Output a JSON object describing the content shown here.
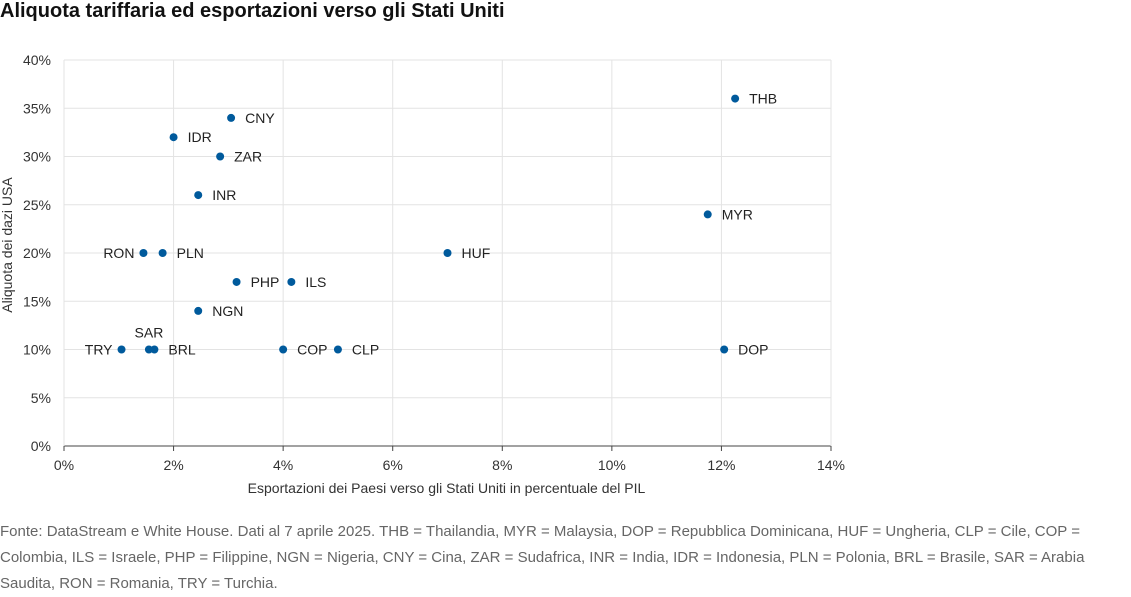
{
  "title": "Aliquota tariffaria ed esportazioni verso gli Stati Uniti",
  "source": "Fonte: DataStream e White House. Dati al 7 aprile 2025. THB = Thailandia, MYR = Malaysia, DOP = Repubblica Dominicana, HUF = Ungheria, CLP = Cile, COP = Colombia, ILS = Israele, PHP = Filippine, NGN = Nigeria, CNY = Cina, ZAR = Sudafrica, INR = India, IDR = Indonesia, PLN = Polonia, BRL = Brasile, SAR = Arabia Saudita, RON = Romania, TRY = Turchia.",
  "chart_data": {
    "type": "scatter",
    "xlabel": "Esportazioni dei Paesi verso gli Stati Uniti in percentuale del PIL",
    "ylabel": "Aliquota dei dazi USA",
    "xlim": [
      0,
      14
    ],
    "ylim": [
      0,
      40
    ],
    "x_ticks": [
      "0%",
      "2%",
      "4%",
      "6%",
      "8%",
      "10%",
      "12%",
      "14%"
    ],
    "y_ticks": [
      "0%",
      "5%",
      "10%",
      "15%",
      "20%",
      "25%",
      "30%",
      "35%",
      "40%"
    ],
    "grid": true,
    "point_color": "#005a9c",
    "points": [
      {
        "label": "THB",
        "x": 12.25,
        "y": 36,
        "label_pos": "right"
      },
      {
        "label": "CNY",
        "x": 3.05,
        "y": 34,
        "label_pos": "right"
      },
      {
        "label": "IDR",
        "x": 2.0,
        "y": 32,
        "label_pos": "right"
      },
      {
        "label": "ZAR",
        "x": 2.85,
        "y": 30,
        "label_pos": "right"
      },
      {
        "label": "INR",
        "x": 2.45,
        "y": 26,
        "label_pos": "right"
      },
      {
        "label": "MYR",
        "x": 11.75,
        "y": 24,
        "label_pos": "right"
      },
      {
        "label": "RON",
        "x": 1.45,
        "y": 20,
        "label_pos": "left"
      },
      {
        "label": "PLN",
        "x": 1.8,
        "y": 20,
        "label_pos": "right"
      },
      {
        "label": "HUF",
        "x": 7.0,
        "y": 20,
        "label_pos": "right"
      },
      {
        "label": "PHP",
        "x": 3.15,
        "y": 17,
        "label_pos": "right"
      },
      {
        "label": "ILS",
        "x": 4.15,
        "y": 17,
        "label_pos": "right"
      },
      {
        "label": "NGN",
        "x": 2.45,
        "y": 14,
        "label_pos": "right"
      },
      {
        "label": "SAR",
        "x": 1.55,
        "y": 10,
        "label_pos": "above"
      },
      {
        "label": "TRY",
        "x": 1.05,
        "y": 10,
        "label_pos": "left"
      },
      {
        "label": "BRL",
        "x": 1.65,
        "y": 10,
        "label_pos": "right"
      },
      {
        "label": "COP",
        "x": 4.0,
        "y": 10,
        "label_pos": "right"
      },
      {
        "label": "CLP",
        "x": 5.0,
        "y": 10,
        "label_pos": "right"
      },
      {
        "label": "DOP",
        "x": 12.05,
        "y": 10,
        "label_pos": "right"
      }
    ]
  }
}
